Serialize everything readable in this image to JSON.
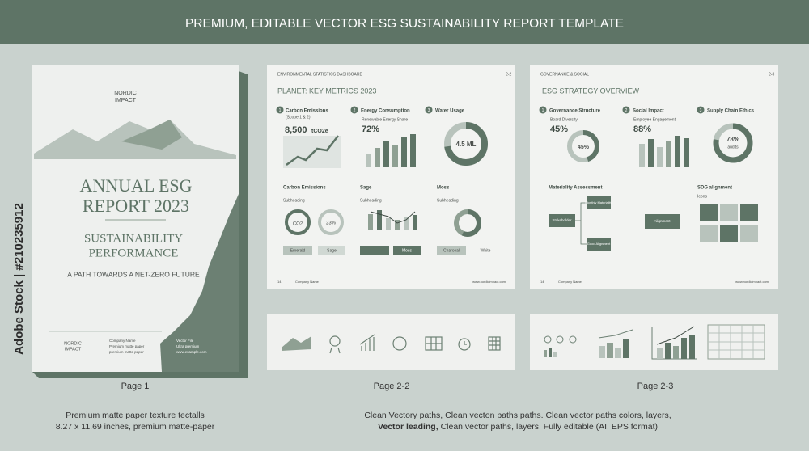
{
  "banner": {
    "title": "PREMIUM, EDITABLE VECTOR ESG SUSTAINABILITY REPORT TEMPLATE"
  },
  "watermark": "Adobe Stock | #210235912",
  "cover": {
    "brand": [
      "NORDIC",
      "IMPACT"
    ],
    "title": [
      "ANNUAL ESG",
      "REPORT 2023"
    ],
    "subtitle": [
      "SUSTAINABILITY",
      "PERFORMANCE"
    ],
    "tagline": "A PATH TOWARDS A NET-ZERO FUTURE",
    "footer_brand": [
      "NORDIC",
      "IMPACT"
    ],
    "footer_col1": [
      "Company Name",
      "Premium matte paper",
      "premium matte paper"
    ],
    "footer_col2": [
      "Vector File",
      "Ultra premium",
      "www.example.com"
    ]
  },
  "page_env": {
    "header": "ENVIRONMENTAL STATISTICS DASHBOARD",
    "page": "2-2",
    "title": "PLANET: KEY METRICS 2023",
    "metrics": [
      {
        "num": "1",
        "title": "Carbon Emissions",
        "sub": "(Scope 1 & 2)",
        "value": "8,500",
        "unit": "tCO2e"
      },
      {
        "num": "2",
        "title": "Energy Consumption",
        "sub": "Renewable Energy Share",
        "value": "72%"
      },
      {
        "num": "3",
        "title": "Water Usage",
        "value": "4.5 ML"
      }
    ],
    "sections": [
      {
        "title": "Carbon Emissions",
        "sub": "Subheading"
      },
      {
        "title": "Sage",
        "sub": "Subheading"
      },
      {
        "title": "Moss",
        "sub": "Subheading"
      }
    ],
    "donuts": [
      "CO2",
      "23%"
    ],
    "buttons": [
      "Emerald",
      "Sage",
      "Moss",
      "Charcoal",
      "White"
    ],
    "footer": [
      "14",
      "Company Name",
      "www.nordicimpact.com"
    ]
  },
  "page_gov": {
    "header": "GOVERNANCE & SOCIAL",
    "page": "2-3",
    "title": "ESG STRATEGY OVERVIEW",
    "metrics": [
      {
        "num": "1",
        "title": "Governance Structure",
        "sub": "Board Diversity",
        "value": "45%",
        "donut": "45%"
      },
      {
        "num": "2",
        "title": "Social Impact",
        "sub": "Employee Engagement",
        "value": "88%"
      },
      {
        "num": "3",
        "title": "Supply Chain Ethics",
        "donut": [
          "78%",
          "audits"
        ]
      }
    ],
    "materiality": {
      "title": "Materiality Assessment",
      "nodes": [
        "Stakeholder",
        "Monthly Materiality",
        "Good Alignment",
        "Alignment"
      ]
    },
    "sdg": {
      "title": "SDG alignment",
      "sub": "Icons"
    },
    "footer": [
      "14",
      "Company Name",
      "www.nordicimpact.com"
    ]
  },
  "labels": [
    "Page 1",
    "Page 2-2",
    "Page 2-3"
  ],
  "captions": {
    "left": [
      "Premium matte paper texture tectalls",
      "8.27 x 11.69 inches, premium matte-paper"
    ],
    "right": [
      "Clean Vectory paths, Clean vecton paths paths. Clean vector paths colors, layers,",
      "Vector leading,",
      "Clean vector paths, layers, Fully editable (AI, EPS format)"
    ]
  }
}
